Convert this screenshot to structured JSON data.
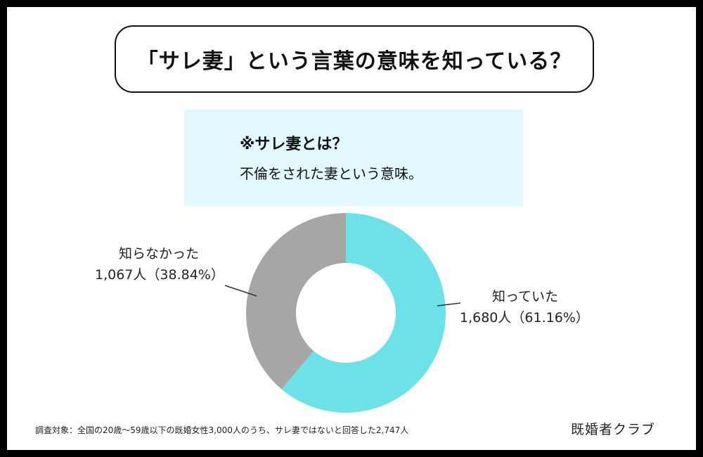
{
  "title": "「サレ妻」という言葉の意味を知っている？",
  "definition": {
    "heading": "※サレ妻とは？",
    "body": "不倫をされた妻という意味。"
  },
  "chart_data": {
    "type": "pie",
    "donut": true,
    "slices": [
      {
        "label": "知っていた",
        "count": 1680,
        "count_text": "1,680人",
        "percent": 61.16,
        "percent_text": "（61.16%）",
        "color": "#6ce2e8"
      },
      {
        "label": "知らなかった",
        "count": 1067,
        "count_text": "1,067人",
        "percent": 38.84,
        "percent_text": "（38.84%）",
        "color": "#a6a6a6"
      }
    ]
  },
  "footnote": "調査対象：全国の20歳〜59歳以下の既婚女性3,000人のうち、サレ妻ではないと回答した2,747人",
  "brand": "既婚者クラブ"
}
